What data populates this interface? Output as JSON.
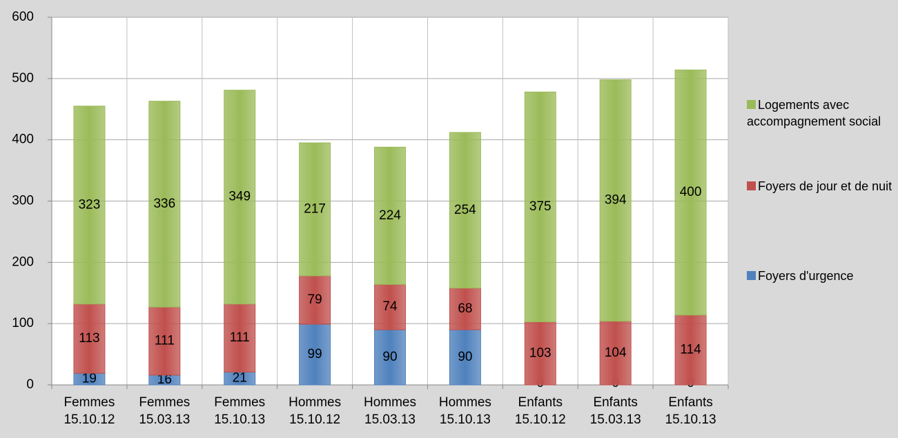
{
  "chart_data": {
    "type": "stacked_bar",
    "categories": [
      [
        "Femmes",
        "15.10.12"
      ],
      [
        "Femmes",
        "15.03.13"
      ],
      [
        "Femmes",
        "15.10.13"
      ],
      [
        "Hommes",
        "15.10.12"
      ],
      [
        "Hommes",
        "15.03.13"
      ],
      [
        "Hommes",
        "15.10.13"
      ],
      [
        "Enfants",
        "15.10.12"
      ],
      [
        "Enfants",
        "15.03.13"
      ],
      [
        "Enfants",
        "15.10.13"
      ]
    ],
    "series": [
      {
        "name": "Foyers d'urgence",
        "color": "#4f81bd",
        "values": [
          19,
          16,
          21,
          99,
          90,
          90,
          0,
          0,
          0
        ]
      },
      {
        "name": "Foyers de jour et de nuit",
        "color": "#c0504d",
        "values": [
          113,
          111,
          111,
          79,
          74,
          68,
          103,
          104,
          114
        ]
      },
      {
        "name": "Logements avec accompagnement social",
        "color": "#9bbb59",
        "values": [
          323,
          336,
          349,
          217,
          224,
          254,
          375,
          394,
          400
        ]
      }
    ],
    "ylim": [
      0,
      600
    ],
    "yticks": [
      0,
      100,
      200,
      300,
      400,
      500,
      600
    ],
    "grid": true,
    "legend": "right"
  }
}
